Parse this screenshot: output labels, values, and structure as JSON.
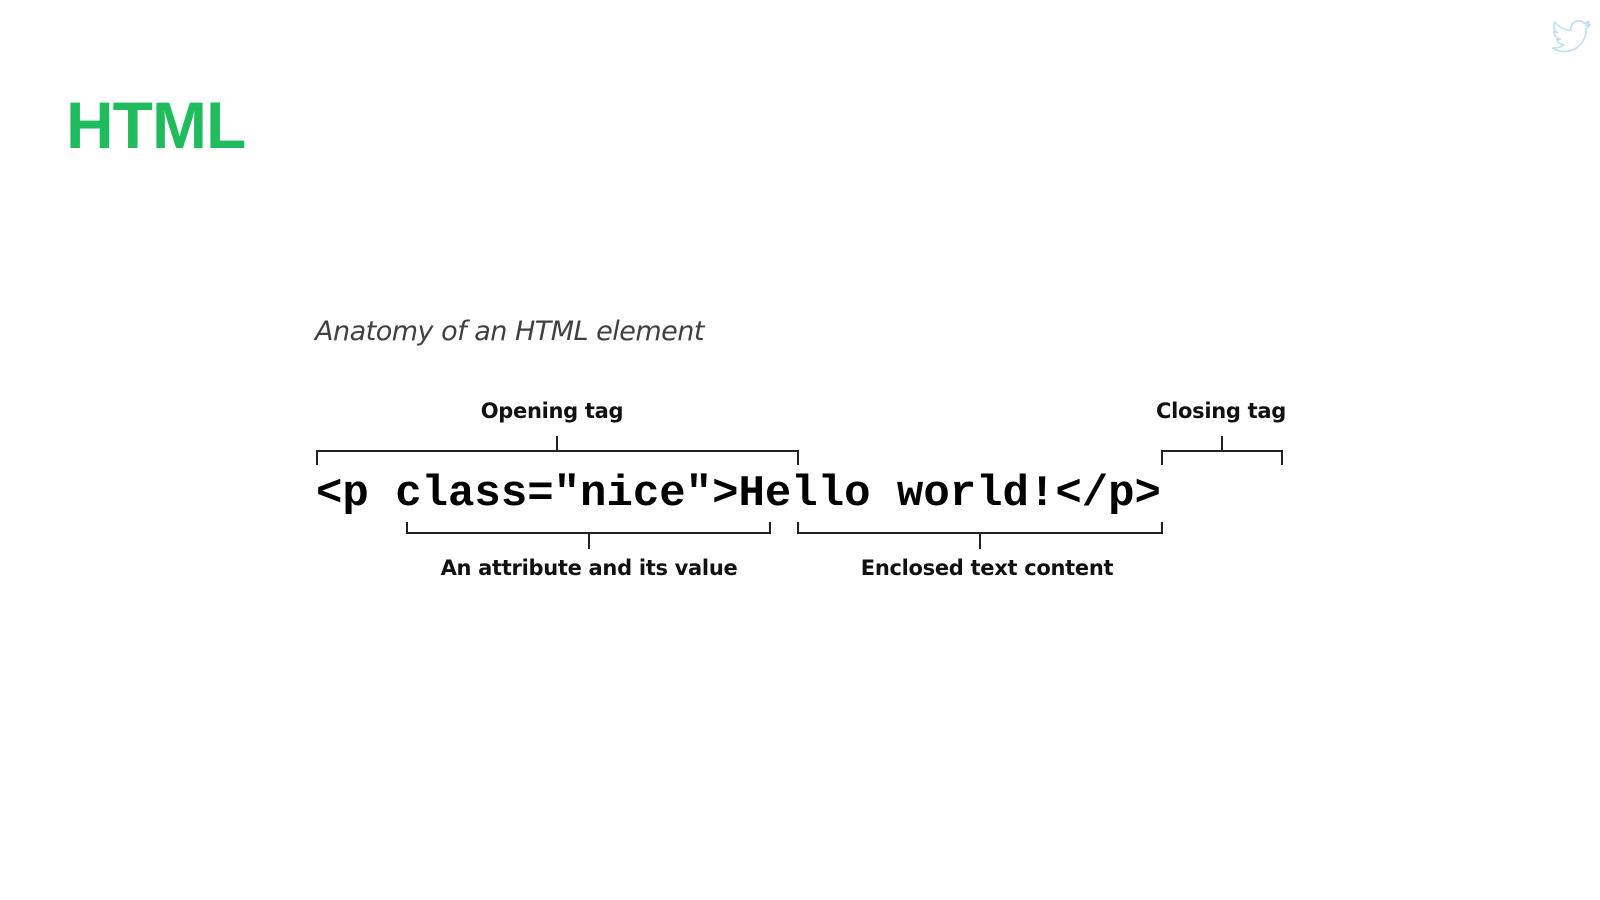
{
  "slide": {
    "title": "HTML",
    "accent_color": "#1fbb5c",
    "corner_icon": "twitter-bird-icon",
    "corner_icon_color": "#bfe0f3"
  },
  "figure": {
    "caption": "Anatomy of an HTML element",
    "code": {
      "opening_tag_start": "<p ",
      "attribute": "class=\"nice\"",
      "opening_tag_end": ">",
      "content": "Hello world!",
      "closing_tag": "</p>"
    },
    "labels": {
      "opening_tag": "Opening tag",
      "closing_tag": "Closing tag",
      "attribute": "An attribute and its value",
      "content": "Enclosed text content"
    }
  }
}
